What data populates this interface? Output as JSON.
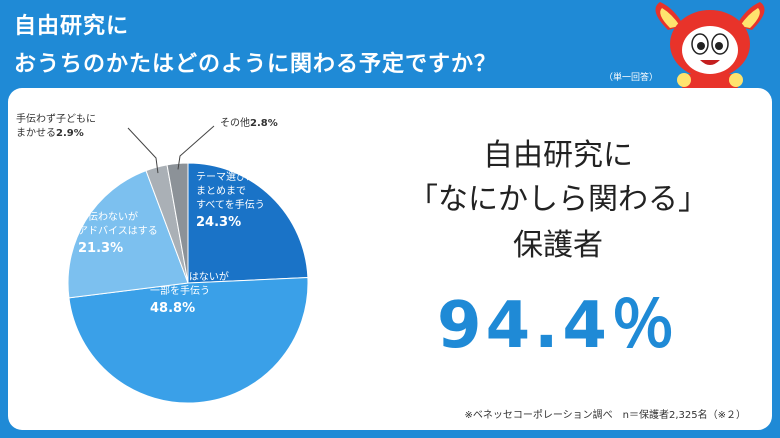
{
  "header": {
    "title_line1": "自由研究に",
    "title_line2": "おうちのかたはどのように関わる予定ですか？",
    "single_answer_note": "（単一回答）"
  },
  "colors": {
    "background": "#1f8ad6",
    "accent": "#1f8ad6",
    "slice_dark_blue": "#1a73c7",
    "slice_blue": "#3aa0e8",
    "slice_light_blue": "#7cc0ef",
    "slice_gray": "#aab0b6",
    "slice_dark_gray": "#8c9298"
  },
  "chart_data": {
    "type": "pie",
    "title": "",
    "slices": [
      {
        "name": "テーマ選びから|まとめまで|すべてを手伝う",
        "value": 24.3,
        "display": "24.3%",
        "color": "#1a73c7",
        "label_inside": true
      },
      {
        "name": "すべてではないが|一部を手伝う",
        "value": 48.8,
        "display": "48.8%",
        "color": "#3aa0e8",
        "label_inside": true
      },
      {
        "name": "手伝わないが|アドバイスはする",
        "value": 21.3,
        "display": "21.3%",
        "color": "#7cc0ef",
        "label_inside": true
      },
      {
        "name": "手伝わず子どもに|まかせる",
        "value": 2.9,
        "display": "2.9%",
        "color": "#aab0b6",
        "label_inside": false
      },
      {
        "name": "その他",
        "value": 2.8,
        "display": "2.8%",
        "color": "#8c9298",
        "label_inside": false
      }
    ]
  },
  "highlight": {
    "line1": "自由研究に",
    "line2": "「なにかしら関わる」",
    "line3": "保護者",
    "percent": "94.4％"
  },
  "footer": {
    "source": "※ベネッセコーポレーション調べ　n＝保護者2,325名（※２）"
  }
}
